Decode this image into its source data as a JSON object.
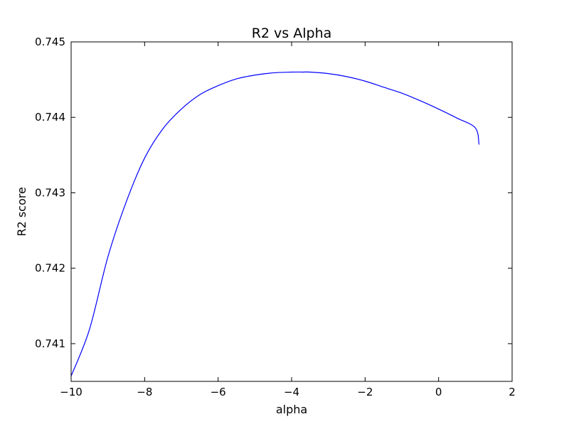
{
  "chart_data": {
    "type": "line",
    "title": "R2 vs Alpha",
    "xlabel": "alpha",
    "ylabel": "R2 score",
    "xlim": [
      -10,
      2
    ],
    "ylim": [
      0.7405,
      0.745
    ],
    "xticks": [
      -10,
      -8,
      -6,
      -4,
      -2,
      0,
      2
    ],
    "xtick_labels": [
      "−10",
      "−8",
      "−6",
      "−4",
      "−2",
      "0",
      "2"
    ],
    "yticks": [
      0.741,
      0.742,
      0.743,
      0.744,
      0.745
    ],
    "ytick_labels": [
      "0.741",
      "0.742",
      "0.743",
      "0.744",
      "0.745"
    ],
    "grid": false,
    "series": [
      {
        "color": "#0000ff",
        "x": [
          -10,
          -9.5,
          -9,
          -8.5,
          -8,
          -7.5,
          -7,
          -6.5,
          -6,
          -5.5,
          -5,
          -4.5,
          -4,
          -3.7,
          -3.5,
          -3,
          -2.5,
          -2,
          -1.5,
          -1,
          -0.5,
          0,
          0.5,
          1,
          1.1
        ],
        "y": [
          0.74057,
          0.74119,
          0.74215,
          0.74288,
          0.74346,
          0.74385,
          0.74411,
          0.7443,
          0.74442,
          0.74451,
          0.74456,
          0.74459,
          0.7446,
          0.7446,
          0.7446,
          0.74458,
          0.74454,
          0.74448,
          0.7444,
          0.74432,
          0.74422,
          0.74411,
          0.74399,
          0.74386,
          0.74364
        ]
      }
    ]
  }
}
